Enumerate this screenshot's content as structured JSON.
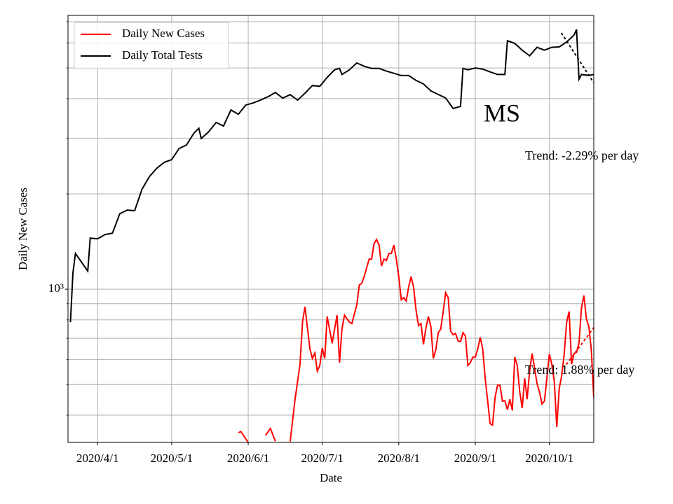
{
  "chart_data": {
    "type": "line",
    "y_label": "Daily New Cases",
    "x_label": "Date",
    "log_y": true,
    "grid": true,
    "legend": "upper left",
    "xlim": [
      "2020-03-20",
      "2020-10-19"
    ],
    "xticks": [
      {
        "value": "2020-04-01",
        "label": "2020/4/1"
      },
      {
        "value": "2020-05-01",
        "label": "2020/5/1"
      },
      {
        "value": "2020-06-01",
        "label": "2020/6/1"
      },
      {
        "value": "2020-07-01",
        "label": "2020/7/1"
      },
      {
        "value": "2020-08-01",
        "label": "2020/8/1"
      },
      {
        "value": "2020-09-01",
        "label": "2020/9/1"
      },
      {
        "value": "2020-10-01",
        "label": "2020/10/1"
      }
    ],
    "ylim": [
      328,
      7330
    ],
    "yticks": [
      {
        "value": 1000,
        "label": "10³"
      }
    ],
    "yminorticks": [
      400,
      500,
      600,
      700,
      800,
      900,
      2000,
      3000,
      4000,
      5000,
      6000,
      7000
    ],
    "series": [
      {
        "name": "Daily New Cases",
        "color": "#ff0000",
        "x": [
          "2020-05-28",
          "2020-05-29",
          "2020-06-01",
          "2020-06-03",
          "2020-06-08",
          "2020-06-10",
          "2020-06-12",
          "2020-06-14",
          "2020-06-18",
          "2020-06-20",
          "2020-06-22",
          "2020-06-23",
          "2020-06-24",
          "2020-06-26",
          "2020-06-27",
          "2020-06-28",
          "2020-06-29",
          "2020-06-30",
          "2020-07-01",
          "2020-07-02",
          "2020-07-03",
          "2020-07-05",
          "2020-07-07",
          "2020-07-08",
          "2020-07-09",
          "2020-07-10",
          "2020-07-12",
          "2020-07-13",
          "2020-07-15",
          "2020-07-16",
          "2020-07-17",
          "2020-07-18",
          "2020-07-20",
          "2020-07-21",
          "2020-07-22",
          "2020-07-23",
          "2020-07-24",
          "2020-07-25",
          "2020-07-26",
          "2020-07-27",
          "2020-07-28",
          "2020-07-29",
          "2020-07-30",
          "2020-07-31",
          "2020-08-01",
          "2020-08-02",
          "2020-08-03",
          "2020-08-04",
          "2020-08-05",
          "2020-08-06",
          "2020-08-07",
          "2020-08-08",
          "2020-08-09",
          "2020-08-10",
          "2020-08-11",
          "2020-08-12",
          "2020-08-13",
          "2020-08-14",
          "2020-08-15",
          "2020-08-16",
          "2020-08-17",
          "2020-08-18",
          "2020-08-19",
          "2020-08-20",
          "2020-08-21",
          "2020-08-22",
          "2020-08-23",
          "2020-08-24",
          "2020-08-25",
          "2020-08-26",
          "2020-08-27",
          "2020-08-28",
          "2020-08-29",
          "2020-08-30",
          "2020-08-31",
          "2020-09-01",
          "2020-09-02",
          "2020-09-03",
          "2020-09-04",
          "2020-09-05",
          "2020-09-06",
          "2020-09-07",
          "2020-09-08",
          "2020-09-09",
          "2020-09-10",
          "2020-09-11",
          "2020-09-12",
          "2020-09-13",
          "2020-09-14",
          "2020-09-15",
          "2020-09-16",
          "2020-09-17",
          "2020-09-18",
          "2020-09-19",
          "2020-09-20",
          "2020-09-21",
          "2020-09-22",
          "2020-09-23",
          "2020-09-24",
          "2020-09-25",
          "2020-09-26",
          "2020-09-27",
          "2020-09-28",
          "2020-09-29",
          "2020-09-30",
          "2020-10-01",
          "2020-10-02",
          "2020-10-03",
          "2020-10-04",
          "2020-10-05",
          "2020-10-06",
          "2020-10-07",
          "2020-10-08",
          "2020-10-09",
          "2020-10-10",
          "2020-10-11",
          "2020-10-12",
          "2020-10-13",
          "2020-10-14",
          "2020-10-15",
          "2020-10-16",
          "2020-10-17",
          "2020-10-18",
          "2020-10-19"
        ],
        "values": [
          352,
          355,
          328,
          null,
          345,
          363,
          331,
          null,
          330,
          449,
          580,
          787,
          880,
          648,
          604,
          629,
          551,
          574,
          652,
          604,
          820,
          675,
          828,
          586,
          748,
          828,
          787,
          779,
          894,
          1031,
          1042,
          1096,
          1245,
          1245,
          1393,
          1436,
          1378,
          1183,
          1245,
          1232,
          1297,
          1297,
          1378,
          1245,
          1096,
          926,
          941,
          917,
          1015,
          1096,
          1015,
          858,
          767,
          779,
          669,
          755,
          820,
          763,
          604,
          642,
          729,
          748,
          850,
          975,
          941,
          737,
          718,
          725,
          686,
          683,
          729,
          711,
          574,
          586,
          610,
          610,
          648,
          704,
          648,
          523,
          444,
          376,
          372,
          455,
          497,
          497,
          443,
          444,
          416,
          449,
          414,
          610,
          574,
          474,
          421,
          523,
          449,
          551,
          626,
          565,
          503,
          474,
          434,
          443,
          523,
          623,
          580,
          510,
          367,
          485,
          532,
          620,
          787,
          850,
          580,
          626,
          632,
          675,
          871,
          955,
          807,
          760,
          642,
          454
        ]
      },
      {
        "name": "Daily Total Tests",
        "color": "#000000",
        "x": [
          "2020-03-21",
          "2020-03-22",
          "2020-03-23",
          "2020-03-28",
          "2020-03-29",
          "2020-04-01",
          "2020-04-04",
          "2020-04-07",
          "2020-04-10",
          "2020-04-13",
          "2020-04-16",
          "2020-04-19",
          "2020-04-22",
          "2020-04-25",
          "2020-04-28",
          "2020-05-01",
          "2020-05-04",
          "2020-05-07",
          "2020-05-10",
          "2020-05-12",
          "2020-05-13",
          "2020-05-16",
          "2020-05-19",
          "2020-05-22",
          "2020-05-25",
          "2020-05-28",
          "2020-05-31",
          "2020-06-03",
          "2020-06-06",
          "2020-06-09",
          "2020-06-12",
          "2020-06-15",
          "2020-06-18",
          "2020-06-21",
          "2020-06-24",
          "2020-06-27",
          "2020-06-30",
          "2020-07-03",
          "2020-07-06",
          "2020-07-08",
          "2020-07-09",
          "2020-07-12",
          "2020-07-15",
          "2020-07-18",
          "2020-07-21",
          "2020-07-24",
          "2020-07-27",
          "2020-07-30",
          "2020-08-02",
          "2020-08-05",
          "2020-08-08",
          "2020-08-11",
          "2020-08-14",
          "2020-08-17",
          "2020-08-20",
          "2020-08-23",
          "2020-08-26",
          "2020-08-27",
          "2020-08-29",
          "2020-09-01",
          "2020-09-04",
          "2020-09-07",
          "2020-09-10",
          "2020-09-13",
          "2020-09-14",
          "2020-09-17",
          "2020-09-20",
          "2020-09-23",
          "2020-09-26",
          "2020-09-29",
          "2020-10-02",
          "2020-10-05",
          "2020-10-08",
          "2020-10-11",
          "2020-10-12",
          "2020-10-13",
          "2020-10-14",
          "2020-10-17",
          "2020-10-19"
        ],
        "values": [
          787,
          1124,
          1297,
          1141,
          1450,
          1443,
          1488,
          1503,
          1733,
          1778,
          1770,
          2070,
          2270,
          2413,
          2517,
          2566,
          2784,
          2855,
          3113,
          3226,
          2993,
          3144,
          3364,
          3277,
          3684,
          3571,
          3817,
          3877,
          3957,
          4055,
          4183,
          4015,
          4118,
          3957,
          4161,
          4400,
          4376,
          4670,
          4934,
          4984,
          4768,
          4934,
          5187,
          5062,
          4984,
          4984,
          4886,
          4810,
          4733,
          4733,
          4566,
          4453,
          4233,
          4122,
          4018,
          3724,
          3780,
          4984,
          4934,
          5000,
          4960,
          4860,
          4770,
          4770,
          6096,
          5980,
          5690,
          5460,
          5810,
          5690,
          5810,
          5830,
          6040,
          6351,
          6617,
          4608,
          4770,
          4733,
          4770
        ]
      }
    ],
    "trend_lines": [
      {
        "color": "#000000",
        "x": [
          "2020-10-06",
          "2020-10-19"
        ],
        "values": [
          6432,
          4488
        ]
      },
      {
        "color": "#ff0000",
        "x": [
          "2020-10-08",
          "2020-10-19"
        ],
        "values": [
          580,
          756
        ]
      }
    ],
    "annotations": [
      "MS",
      "Trend: -2.29% per day",
      "Trend: 1.88% per day"
    ]
  }
}
